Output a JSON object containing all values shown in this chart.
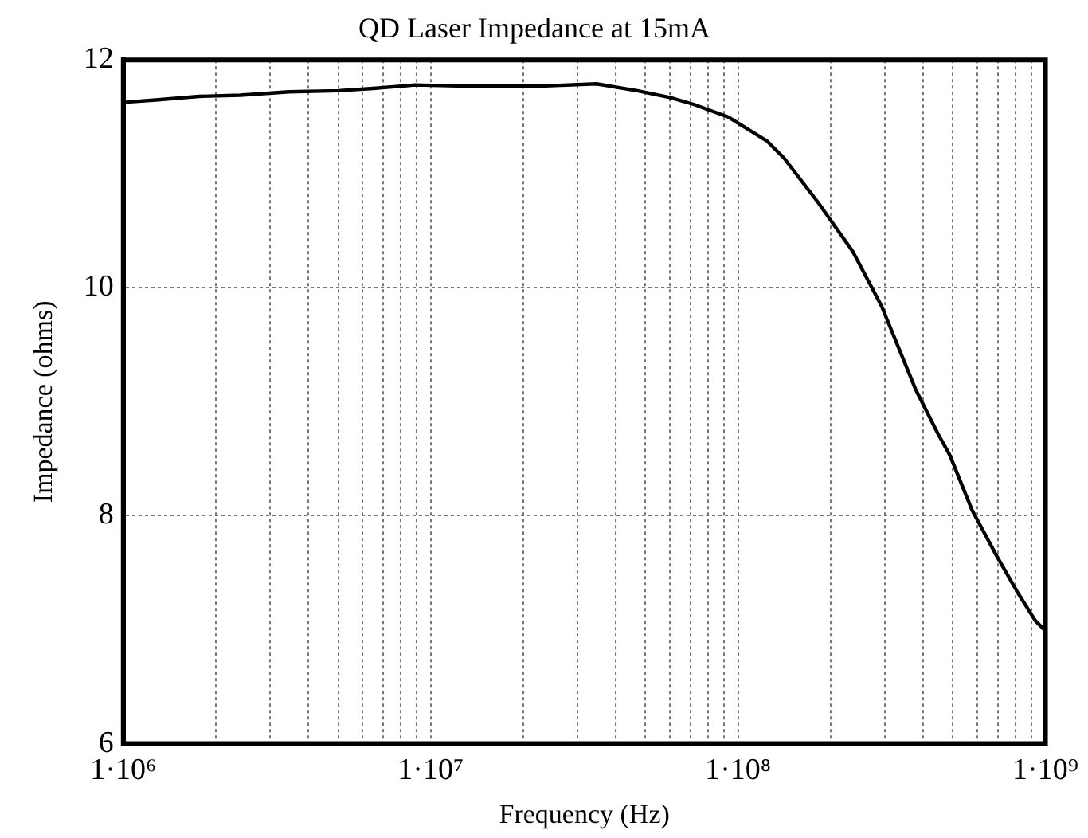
{
  "chart_data": {
    "type": "line",
    "title": "QD Laser Impedance at 15mA",
    "xlabel": "Frequency (Hz)",
    "ylabel": "Impedance (ohms)",
    "log": "x",
    "grid": true,
    "marker": "none",
    "line_style": "solid",
    "x": [
      1030000,
      1300000,
      1760000,
      2400000,
      3460000,
      5000000,
      6500000,
      8900000,
      13000000,
      22700000,
      34600000,
      47000000,
      60000000,
      71700000,
      92700000,
      124000000,
      141000000,
      182000000,
      236000000,
      293000000,
      378000000,
      447000000,
      489000000,
      577000000,
      690000000,
      815000000,
      927000000,
      1000000000
    ],
    "series": [
      {
        "color": "#000000",
        "values": [
          11.63,
          11.65,
          11.68,
          11.69,
          11.72,
          11.73,
          11.75,
          11.78,
          11.77,
          11.77,
          11.79,
          11.73,
          11.67,
          11.61,
          11.5,
          11.29,
          11.14,
          10.75,
          10.32,
          9.84,
          9.11,
          8.72,
          8.53,
          8.05,
          7.66,
          7.32,
          7.08,
          6.99
        ]
      }
    ],
    "xlim": [
      1000000,
      1000000000
    ],
    "ylim": [
      6,
      12
    ],
    "yticks": [
      6,
      8,
      10,
      12
    ],
    "xticks": [
      {
        "value": 1000000,
        "label": "1·10⁶"
      },
      {
        "value": 2000000,
        "label": null
      },
      {
        "value": 3000000,
        "label": null
      },
      {
        "value": 4000000,
        "label": null
      },
      {
        "value": 5000000,
        "label": null
      },
      {
        "value": 6000000,
        "label": null
      },
      {
        "value": 7000000,
        "label": null
      },
      {
        "value": 8000000,
        "label": null
      },
      {
        "value": 9000000,
        "label": null
      },
      {
        "value": 10000000,
        "label": "1·10⁷"
      },
      {
        "value": 20000000,
        "label": null
      },
      {
        "value": 30000000,
        "label": null
      },
      {
        "value": 40000000,
        "label": null
      },
      {
        "value": 50000000,
        "label": null
      },
      {
        "value": 60000000,
        "label": null
      },
      {
        "value": 70000000,
        "label": null
      },
      {
        "value": 80000000,
        "label": null
      },
      {
        "value": 90000000,
        "label": null
      },
      {
        "value": 100000000,
        "label": "1·10⁸"
      },
      {
        "value": 200000000,
        "label": null
      },
      {
        "value": 300000000,
        "label": null
      },
      {
        "value": 400000000,
        "label": null
      },
      {
        "value": 500000000,
        "label": null
      },
      {
        "value": 600000000,
        "label": null
      },
      {
        "value": 700000000,
        "label": null
      },
      {
        "value": 800000000,
        "label": null
      },
      {
        "value": 900000000,
        "label": null
      },
      {
        "value": 1000000000,
        "label": "1·10⁹"
      }
    ]
  }
}
